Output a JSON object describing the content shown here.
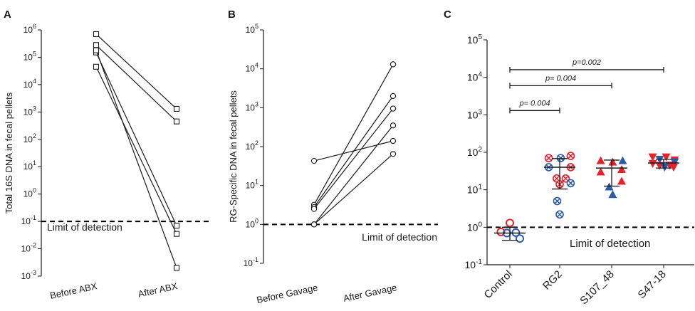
{
  "chart_data": [
    {
      "panel": "A",
      "type": "line",
      "scale": "log",
      "ylabel": "Total 16S DNA in fecal pellets",
      "yticks": [
        "10^-3",
        "10^-2",
        "10^-1",
        "10^0",
        "10^1",
        "10^2",
        "10^3",
        "10^4",
        "10^5",
        "10^6"
      ],
      "ylim": [
        0.001,
        1000000
      ],
      "categories": [
        "Before ABX",
        "After ABX"
      ],
      "series": [
        {
          "values": [
            700000,
            1300
          ]
        },
        {
          "values": [
            280000,
            450
          ]
        },
        {
          "values": [
            150000,
            0.07
          ]
        },
        {
          "values": [
            45000,
            0.035
          ]
        },
        {
          "values": [
            180000,
            0.002
          ]
        }
      ],
      "marker": "square",
      "threshold": {
        "value": 0.1,
        "label": "Limit of detection"
      }
    },
    {
      "panel": "B",
      "type": "line",
      "scale": "log",
      "ylabel": "RG-Specific DNA in fecal pellets",
      "yticks": [
        "10^-1",
        "10^0",
        "10^1",
        "10^2",
        "10^3",
        "10^4",
        "10^5"
      ],
      "ylim": [
        0.1,
        100000
      ],
      "categories": [
        "Before Gavage",
        "After Gavage"
      ],
      "series": [
        {
          "values": [
            43,
            140
          ]
        },
        {
          "values": [
            3.2,
            13000
          ]
        },
        {
          "values": [
            2.8,
            2000
          ]
        },
        {
          "values": [
            2.5,
            950
          ]
        },
        {
          "values": [
            1.0,
            350
          ]
        },
        {
          "values": [
            1.0,
            65
          ]
        }
      ],
      "marker": "circle",
      "threshold": {
        "value": 1,
        "label": "Limit of detection"
      }
    },
    {
      "panel": "C",
      "type": "scatter",
      "scale": "log",
      "yticks": [
        "10^-1",
        "10^0",
        "10^1",
        "10^2",
        "10^3",
        "10^4",
        "10^5"
      ],
      "ylim": [
        0.1,
        100000
      ],
      "categories": [
        "Control",
        "RG2",
        "S107_48",
        "S47-18"
      ],
      "colors": {
        "red": "#e8202a",
        "blue": "#2b5aa6"
      },
      "groups": [
        {
          "points": [
            {
              "dx": -0.18,
              "y": 0.75,
              "color": "red",
              "marker": "circle-open"
            },
            {
              "dx": 0.0,
              "y": 1.3,
              "color": "red",
              "marker": "circle-open"
            },
            {
              "dx": -0.06,
              "y": 0.7,
              "color": "blue",
              "marker": "circle-open"
            },
            {
              "dx": 0.12,
              "y": 0.72,
              "color": "blue",
              "marker": "circle-open"
            },
            {
              "dx": 0.2,
              "y": 0.5,
              "color": "blue",
              "marker": "circle-open"
            }
          ],
          "mean": 0.7,
          "err_low": 0.45,
          "err_high": 1.0
        },
        {
          "points": [
            {
              "dx": -0.22,
              "y": 70,
              "color": "red",
              "marker": "circle-x"
            },
            {
              "dx": 0.02,
              "y": 70,
              "color": "blue",
              "marker": "circle-x"
            },
            {
              "dx": 0.22,
              "y": 80,
              "color": "red",
              "marker": "circle-x"
            },
            {
              "dx": -0.22,
              "y": 40,
              "color": "blue",
              "marker": "circle-x"
            },
            {
              "dx": 0.22,
              "y": 40,
              "color": "red",
              "marker": "circle-x"
            },
            {
              "dx": -0.06,
              "y": 20,
              "color": "red",
              "marker": "circle-x"
            },
            {
              "dx": 0.12,
              "y": 20,
              "color": "red",
              "marker": "circle-x"
            },
            {
              "dx": 0.0,
              "y": 14,
              "color": "red",
              "marker": "circle-x"
            },
            {
              "dx": 0.22,
              "y": 15,
              "color": "blue",
              "marker": "circle-x"
            },
            {
              "dx": -0.05,
              "y": 5,
              "color": "blue",
              "marker": "circle-x"
            },
            {
              "dx": 0.0,
              "y": 2.2,
              "color": "blue",
              "marker": "circle-x"
            }
          ],
          "mean": 40,
          "err_low": 10.5,
          "err_high": 68
        },
        {
          "points": [
            {
              "dx": -0.22,
              "y": 60,
              "color": "red",
              "marker": "triangle-up"
            },
            {
              "dx": 0.02,
              "y": 55,
              "color": "red",
              "marker": "triangle-up"
            },
            {
              "dx": 0.22,
              "y": 60,
              "color": "blue",
              "marker": "triangle-up"
            },
            {
              "dx": -0.22,
              "y": 30,
              "color": "red",
              "marker": "triangle-up"
            },
            {
              "dx": 0.2,
              "y": 35,
              "color": "red",
              "marker": "triangle-up"
            },
            {
              "dx": -0.05,
              "y": 12,
              "color": "blue",
              "marker": "triangle-up"
            },
            {
              "dx": 0.2,
              "y": 17,
              "color": "red",
              "marker": "triangle-up"
            },
            {
              "dx": 0.02,
              "y": 7.5,
              "color": "blue",
              "marker": "triangle-up"
            }
          ],
          "mean": 38,
          "err_low": 12.5,
          "err_high": 62
        },
        {
          "points": [
            {
              "dx": -0.22,
              "y": 75,
              "color": "red",
              "marker": "triangle-down"
            },
            {
              "dx": 0.05,
              "y": 75,
              "color": "red",
              "marker": "triangle-down"
            },
            {
              "dx": -0.08,
              "y": 65,
              "color": "blue",
              "marker": "triangle-down"
            },
            {
              "dx": 0.22,
              "y": 62,
              "color": "red",
              "marker": "triangle-down"
            },
            {
              "dx": -0.22,
              "y": 50,
              "color": "red",
              "marker": "triangle-down"
            },
            {
              "dx": 0.22,
              "y": 55,
              "color": "blue",
              "marker": "triangle-down"
            },
            {
              "dx": 0.12,
              "y": 45,
              "color": "red",
              "marker": "triangle-down"
            },
            {
              "dx": -0.08,
              "y": 44,
              "color": "red",
              "marker": "triangle-down"
            },
            {
              "dx": 0.02,
              "y": 40,
              "color": "blue",
              "marker": "triangle-down"
            },
            {
              "dx": 0.2,
              "y": 40,
              "color": "red",
              "marker": "triangle-down"
            }
          ],
          "mean": 52,
          "err_low": 38,
          "err_high": 65
        }
      ],
      "significance": [
        {
          "from": "Control",
          "to": "RG2",
          "y": 1300,
          "label": "p= 0.004"
        },
        {
          "from": "Control",
          "to": "S107_48",
          "y": 6000,
          "label": "p= 0.004"
        },
        {
          "from": "Control",
          "to": "S47-18",
          "y": 16000,
          "label": "p=0.002"
        }
      ],
      "threshold": {
        "value": 1,
        "label": "Limit of detection"
      }
    }
  ]
}
